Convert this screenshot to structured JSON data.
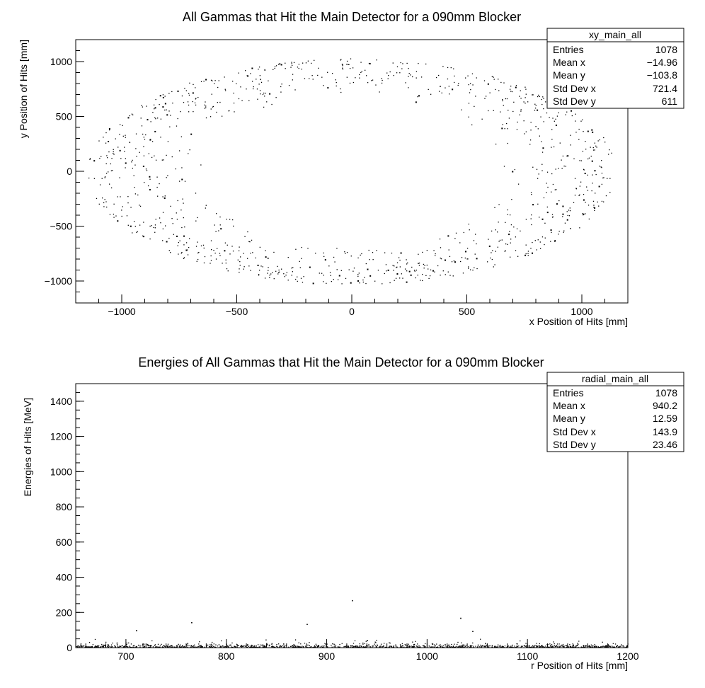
{
  "chart_data": [
    {
      "type": "scatter",
      "title": "All Gammas that Hit the Main Detector for a 090mm Blocker",
      "xlabel": "x Position of Hits [mm]",
      "ylabel": "y Position of Hits [mm]",
      "xlim": [
        -1200,
        1200
      ],
      "ylim": [
        -1200,
        1200
      ],
      "xticks": [
        -1000,
        -500,
        0,
        500,
        1000
      ],
      "yticks": [
        -1000,
        -500,
        0,
        500,
        1000
      ],
      "xtick_labels": [
        "−1000",
        "−500",
        "0",
        "500",
        "1000"
      ],
      "ytick_labels": [
        "−1000",
        "−500",
        "0",
        "500",
        "1000"
      ],
      "legend": "top-right",
      "distribution": {
        "shape": "elliptical ring",
        "rx_inner": 640,
        "rx_outer": 1150,
        "ry_inner": 680,
        "ry_outer": 1030,
        "n": 1078
      },
      "stats": {
        "name": "xy_main_all",
        "rows": [
          {
            "label": "Entries",
            "value": "1078"
          },
          {
            "label": "Mean x",
            "value": "−14.96"
          },
          {
            "label": "Mean y",
            "value": "−103.8"
          },
          {
            "label": "Std Dev x",
            "value": "721.4"
          },
          {
            "label": "Std Dev y",
            "value": "611"
          }
        ]
      }
    },
    {
      "type": "scatter",
      "title": "Energies of All Gammas that Hit the Main Detector for a 090mm Blocker",
      "xlabel": "r Position of Hits [mm]",
      "ylabel": "Energies of Hits [MeV]",
      "xlim": [
        650,
        1200
      ],
      "ylim": [
        0,
        1500
      ],
      "xticks": [
        700,
        800,
        900,
        1000,
        1100,
        1200
      ],
      "yticks": [
        0,
        200,
        400,
        600,
        800,
        1000,
        1200,
        1400
      ],
      "xtick_labels": [
        "700",
        "800",
        "900",
        "1000",
        "1100",
        "1200"
      ],
      "ytick_labels": [
        "0",
        "200",
        "400",
        "600",
        "800",
        "1000",
        "1200",
        "1400"
      ],
      "legend": "top-right",
      "distribution": {
        "shape": "dense band near zero energy",
        "n": 1078,
        "notable_points": [
          [
            925,
            270
          ],
          [
            1033,
            170
          ],
          [
            765,
            145
          ],
          [
            880,
            135
          ],
          [
            710,
            100
          ],
          [
            1045,
            95
          ]
        ]
      },
      "stats": {
        "name": "radial_main_all",
        "rows": [
          {
            "label": "Entries",
            "value": "1078"
          },
          {
            "label": "Mean x",
            "value": "940.2"
          },
          {
            "label": "Mean y",
            "value": "12.59"
          },
          {
            "label": "Std Dev x",
            "value": "143.9"
          },
          {
            "label": "Std Dev y",
            "value": "23.46"
          }
        ]
      }
    }
  ]
}
